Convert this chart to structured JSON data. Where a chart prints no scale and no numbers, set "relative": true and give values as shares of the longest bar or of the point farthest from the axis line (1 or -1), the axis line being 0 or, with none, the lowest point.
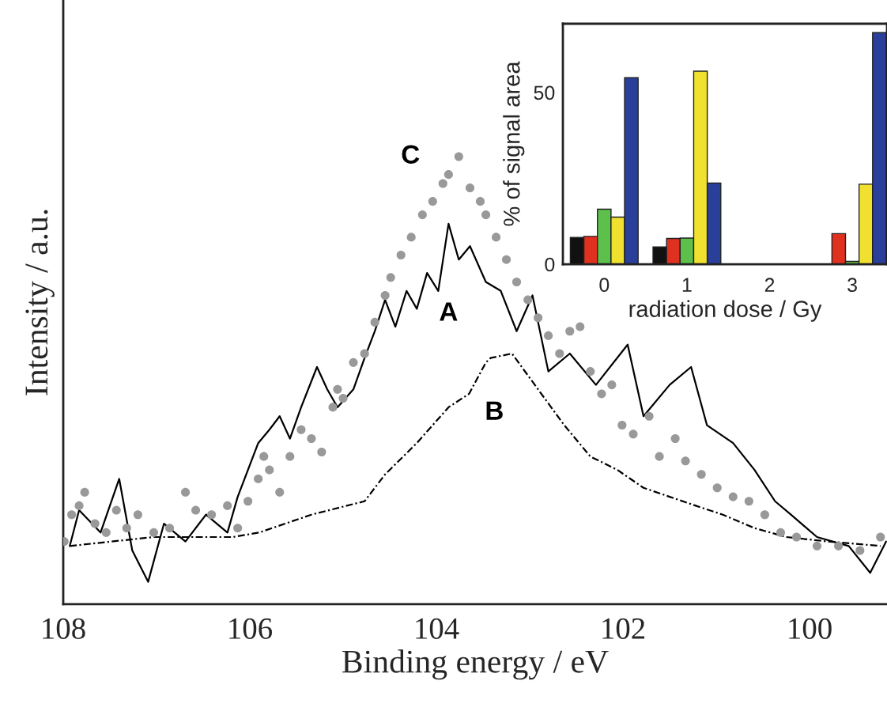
{
  "chart_data": [
    {
      "type": "line",
      "relative": true,
      "xlabel": "Binding energy / eV",
      "ylabel": "Intensity / a.u.",
      "xlim": [
        108,
        99.17
      ],
      "xticks": [
        108,
        106,
        104,
        102,
        100
      ],
      "tick_labels": "x",
      "series": [
        {
          "name": "A",
          "color": "#000000",
          "line_style": "solid",
          "x": [
            107.93,
            107.83,
            107.6,
            107.4,
            107.26,
            107.09,
            106.92,
            106.69,
            106.47,
            106.24,
            106.13,
            106.02,
            105.91,
            105.79,
            105.68,
            105.57,
            105.45,
            105.28,
            105.17,
            105.06,
            104.89,
            104.77,
            104.66,
            104.55,
            104.44,
            104.32,
            104.21,
            104.1,
            103.98,
            103.87,
            103.76,
            103.64,
            103.47,
            103.31,
            103.14,
            102.97,
            102.8,
            102.57,
            102.29,
            101.95,
            101.78,
            101.5,
            101.27,
            101.1,
            100.82,
            100.59,
            100.37,
            100.2,
            99.92,
            99.58,
            99.35,
            99.18
          ],
          "values": [
            0.13,
            0.21,
            0.16,
            0.28,
            0.12,
            0.05,
            0.18,
            0.14,
            0.2,
            0.16,
            0.24,
            0.3,
            0.36,
            0.39,
            0.42,
            0.37,
            0.44,
            0.53,
            0.48,
            0.44,
            0.48,
            0.55,
            0.61,
            0.68,
            0.62,
            0.7,
            0.66,
            0.74,
            0.7,
            0.85,
            0.77,
            0.8,
            0.72,
            0.7,
            0.61,
            0.69,
            0.52,
            0.56,
            0.49,
            0.58,
            0.42,
            0.49,
            0.53,
            0.4,
            0.36,
            0.3,
            0.23,
            0.2,
            0.15,
            0.13,
            0.07,
            0.14
          ]
        },
        {
          "name": "B",
          "color": "#000000",
          "line_style": "dashed",
          "x": [
            107.93,
            107.03,
            106.18,
            105.9,
            105.34,
            104.77,
            104.55,
            104.21,
            103.87,
            103.65,
            103.47,
            103.42,
            103.19,
            102.91,
            102.63,
            102.35,
            102.06,
            101.78,
            101.5,
            101.22,
            100.93,
            100.59,
            100.25,
            99.8,
            99.24
          ],
          "values": [
            0.13,
            0.15,
            0.15,
            0.16,
            0.2,
            0.23,
            0.29,
            0.36,
            0.44,
            0.47,
            0.54,
            0.55,
            0.56,
            0.48,
            0.4,
            0.33,
            0.3,
            0.26,
            0.24,
            0.22,
            0.2,
            0.17,
            0.15,
            0.14,
            0.13
          ]
        },
        {
          "name": "C",
          "color": "#999999",
          "type": "scatter",
          "marker": "circle",
          "x": [
            107.99,
            107.91,
            107.83,
            107.77,
            107.66,
            107.54,
            107.43,
            107.32,
            107.2,
            107.03,
            106.86,
            106.69,
            106.58,
            106.41,
            106.24,
            106.13,
            106.02,
            105.91,
            105.85,
            105.79,
            105.68,
            105.57,
            105.45,
            105.34,
            105.23,
            105.11,
            105.06,
            105.0,
            104.89,
            104.77,
            104.66,
            104.55,
            104.49,
            104.38,
            104.27,
            104.15,
            104.04,
            103.93,
            103.87,
            103.76,
            103.64,
            103.53,
            103.47,
            103.36,
            103.25,
            103.14,
            103.02,
            102.91,
            102.8,
            102.68,
            102.57,
            102.46,
            102.35,
            102.23,
            102.12,
            102.01,
            101.89,
            101.72,
            101.61,
            101.44,
            101.33,
            101.16,
            100.99,
            100.82,
            100.65,
            100.48,
            100.31,
            100.14,
            99.92,
            99.69,
            99.46,
            99.24
          ],
          "values": [
            0.14,
            0.2,
            0.22,
            0.25,
            0.18,
            0.16,
            0.21,
            0.17,
            0.2,
            0.16,
            0.17,
            0.25,
            0.21,
            0.2,
            0.22,
            0.17,
            0.23,
            0.28,
            0.33,
            0.3,
            0.25,
            0.33,
            0.39,
            0.37,
            0.34,
            0.44,
            0.48,
            0.46,
            0.54,
            0.56,
            0.63,
            0.69,
            0.73,
            0.78,
            0.82,
            0.87,
            0.9,
            0.94,
            0.96,
            1.0,
            0.93,
            0.9,
            0.87,
            0.82,
            0.77,
            0.72,
            0.68,
            0.64,
            0.6,
            0.56,
            0.61,
            0.62,
            0.52,
            0.47,
            0.49,
            0.4,
            0.38,
            0.42,
            0.33,
            0.37,
            0.32,
            0.29,
            0.26,
            0.24,
            0.23,
            0.2,
            0.16,
            0.15,
            0.13,
            0.13,
            0.12,
            0.15
          ]
        }
      ]
    },
    {
      "type": "bar",
      "xlabel": "radiation dose / Gy",
      "ylabel": "% of signal area",
      "x": [
        0,
        1,
        2,
        3
      ],
      "xlim": [
        -0.5,
        3.42
      ],
      "xticks": [
        0,
        1,
        2,
        3
      ],
      "ylim": [
        0,
        70
      ],
      "yticks": [
        0,
        50
      ],
      "series": [
        {
          "color": "#111111",
          "values": [
            7.8,
            5.0,
            0,
            0
          ]
        },
        {
          "color": "#e03020",
          "values": [
            8.1,
            7.5,
            0,
            8.9
          ]
        },
        {
          "color": "#5cc04a",
          "values": [
            16.0,
            7.6,
            0,
            0.8
          ]
        },
        {
          "color": "#f0e030",
          "values": [
            13.7,
            56.2,
            0,
            23.3
          ]
        },
        {
          "color": "#2a3f9a",
          "values": [
            54.3,
            23.6,
            0,
            67.4
          ]
        }
      ]
    }
  ]
}
